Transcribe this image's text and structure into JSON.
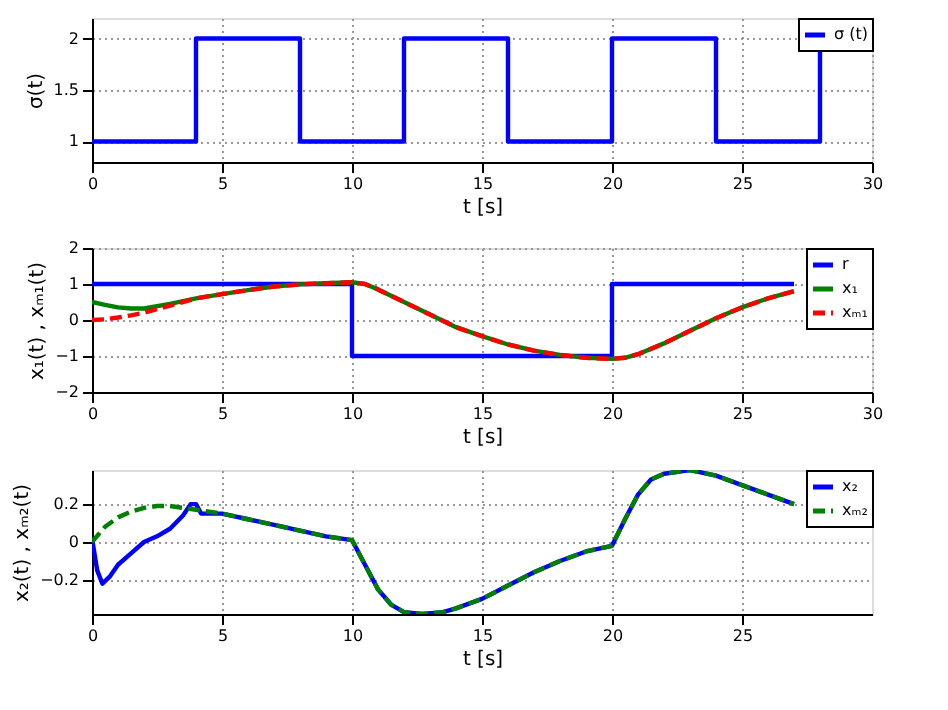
{
  "chart_data": [
    {
      "type": "line",
      "xlabel": "t [s]",
      "ylabel": "σ(t)",
      "xlim": [
        0,
        30
      ],
      "xticks": [
        0,
        5,
        10,
        15,
        20,
        25,
        30
      ],
      "ylim": [
        0.8,
        2.2
      ],
      "yticks": [
        1,
        1.5,
        2
      ],
      "grid": true,
      "legend": "top right",
      "series": [
        {
          "name": "σ (t)",
          "type": "step",
          "color": "#0000ff",
          "line_style": "solid",
          "x": [
            0,
            4,
            8,
            12,
            16,
            20,
            24,
            28
          ],
          "values": [
            1,
            2,
            1,
            2,
            1,
            2,
            1,
            2
          ]
        }
      ]
    },
    {
      "type": "line",
      "xlabel": "t [s]",
      "ylabel": "x₁(t) , xₘ₁(t)",
      "xlim": [
        0,
        30
      ],
      "xticks": [
        0,
        5,
        10,
        15,
        20,
        25,
        30
      ],
      "ylim": [
        -2,
        2
      ],
      "yticks": [
        -2,
        -1,
        0,
        1,
        2
      ],
      "grid": true,
      "legend": "top right",
      "series": [
        {
          "name": "r",
          "type": "step",
          "color": "#0000ff",
          "line_style": "solid",
          "x": [
            0,
            10,
            20,
            27
          ],
          "values": [
            1,
            -1,
            1,
            1
          ]
        },
        {
          "name": "x₁",
          "color": "#008000",
          "line_style": "solid",
          "x": [
            0,
            0.5,
            1,
            1.5,
            2,
            3,
            4,
            5,
            6,
            7,
            8,
            9,
            10,
            10.5,
            11,
            12,
            13,
            14,
            15,
            16,
            17,
            18,
            19,
            20,
            20.5,
            21,
            22,
            23,
            24,
            25,
            26,
            27
          ],
          "values": [
            0.5,
            0.42,
            0.35,
            0.32,
            0.32,
            0.45,
            0.6,
            0.72,
            0.83,
            0.93,
            0.99,
            1.02,
            1.05,
            1.0,
            0.85,
            0.5,
            0.15,
            -0.2,
            -0.45,
            -0.68,
            -0.85,
            -0.97,
            -1.05,
            -1.08,
            -1.05,
            -0.95,
            -0.65,
            -0.3,
            0.05,
            0.35,
            0.6,
            0.8
          ]
        },
        {
          "name": "xₘ₁",
          "color": "#ff0000",
          "line_style": "dashed",
          "x": [
            0,
            0.5,
            1,
            1.5,
            2,
            3,
            4,
            5,
            6,
            7,
            8,
            9,
            10,
            10.5,
            11,
            12,
            13,
            14,
            15,
            16,
            17,
            18,
            19,
            20,
            20.5,
            21,
            22,
            23,
            24,
            25,
            26,
            27
          ],
          "values": [
            0,
            0.02,
            0.07,
            0.13,
            0.2,
            0.4,
            0.6,
            0.72,
            0.83,
            0.93,
            0.99,
            1.02,
            1.05,
            1.0,
            0.85,
            0.5,
            0.15,
            -0.2,
            -0.45,
            -0.68,
            -0.85,
            -0.97,
            -1.05,
            -1.08,
            -1.05,
            -0.95,
            -0.65,
            -0.3,
            0.05,
            0.35,
            0.6,
            0.8
          ]
        }
      ]
    },
    {
      "type": "line",
      "xlabel": "t [s]",
      "ylabel": "x₂(t) , xₘ₂(t)",
      "xlim": [
        0,
        30
      ],
      "xticks": [
        0,
        5,
        10,
        15,
        20,
        25
      ],
      "ylim": [
        -0.38,
        0.38
      ],
      "yticks": [
        -0.2,
        0,
        0.2
      ],
      "grid": true,
      "legend": "top right",
      "series": [
        {
          "name": "x₂",
          "color": "#0000ff",
          "line_style": "solid",
          "x": [
            0,
            0.2,
            0.4,
            0.7,
            1,
            1.5,
            2,
            2.5,
            3,
            3.5,
            3.8,
            4,
            4.2,
            5,
            6,
            7,
            8,
            9,
            10,
            10.5,
            11,
            11.5,
            12,
            12.7,
            13.5,
            14,
            15,
            16,
            17,
            18,
            19,
            20,
            20.5,
            21,
            21.5,
            22,
            23,
            24,
            25,
            26,
            27
          ],
          "values": [
            0.02,
            -0.15,
            -0.22,
            -0.18,
            -0.12,
            -0.06,
            0.0,
            0.03,
            0.07,
            0.14,
            0.2,
            0.2,
            0.15,
            0.15,
            0.12,
            0.09,
            0.06,
            0.03,
            0.01,
            -0.12,
            -0.25,
            -0.33,
            -0.37,
            -0.38,
            -0.37,
            -0.35,
            -0.3,
            -0.23,
            -0.16,
            -0.1,
            -0.05,
            -0.02,
            0.12,
            0.25,
            0.33,
            0.36,
            0.38,
            0.35,
            0.3,
            0.25,
            0.2
          ]
        },
        {
          "name": "xₘ₂",
          "color": "#008000",
          "line_style": "dashed",
          "x": [
            0,
            0.5,
            1,
            1.5,
            2,
            2.5,
            3,
            3.5,
            4,
            4.5,
            5,
            6,
            7,
            8,
            9,
            10,
            10.5,
            11,
            11.5,
            12,
            12.7,
            13.5,
            14,
            15,
            16,
            17,
            18,
            19,
            20,
            20.5,
            21,
            21.5,
            22,
            23,
            24,
            25,
            26,
            27
          ],
          "values": [
            0.0,
            0.08,
            0.13,
            0.16,
            0.18,
            0.19,
            0.19,
            0.18,
            0.17,
            0.16,
            0.15,
            0.12,
            0.09,
            0.06,
            0.03,
            0.01,
            -0.12,
            -0.25,
            -0.33,
            -0.37,
            -0.38,
            -0.37,
            -0.35,
            -0.3,
            -0.23,
            -0.16,
            -0.1,
            -0.05,
            -0.02,
            0.12,
            0.25,
            0.33,
            0.36,
            0.38,
            0.35,
            0.3,
            0.25,
            0.2
          ]
        }
      ]
    }
  ]
}
